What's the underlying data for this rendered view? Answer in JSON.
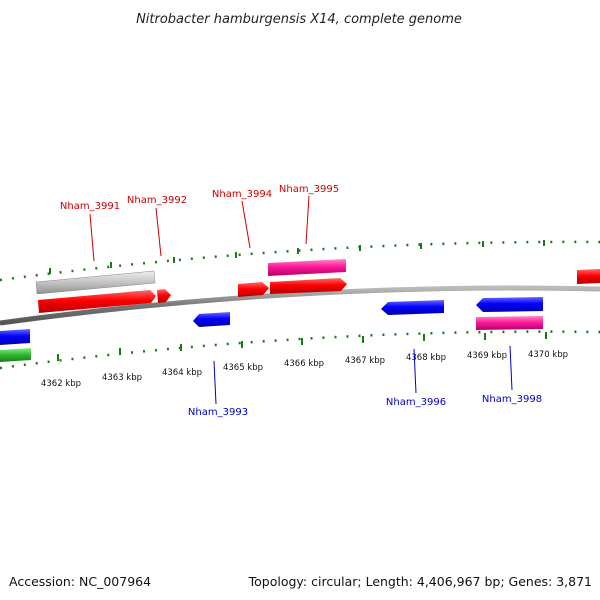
{
  "title": "Nitrobacter hamburgensis X14, complete genome",
  "footer": {
    "accession": "Accession: NC_007964",
    "topology": "Topology: circular; Length: 4,406,967 bp; Genes: 3,871"
  },
  "ticks": [
    "4362 kbp",
    "4363 kbp",
    "4364 kbp",
    "4365 kbp",
    "4366 kbp",
    "4367 kbp",
    "4368 kbp",
    "4369 kbp",
    "4370 kbp"
  ],
  "forward_labels": [
    "Nham_3991",
    "Nham_3992",
    "Nham_3994",
    "Nham_3995"
  ],
  "reverse_labels": [
    "Nham_3993",
    "Nham_3996",
    "Nham_3998"
  ],
  "colors": {
    "forward_label": "#cc0000",
    "reverse_label": "#0000cc",
    "forward_cds": "#ff0000",
    "reverse_cds": "#0000ff",
    "rna": "#ff3399",
    "pseudo": "#c8c8c8",
    "other": "#33bb33",
    "tick": "#1a7a1a",
    "backbone": "#777777"
  }
}
